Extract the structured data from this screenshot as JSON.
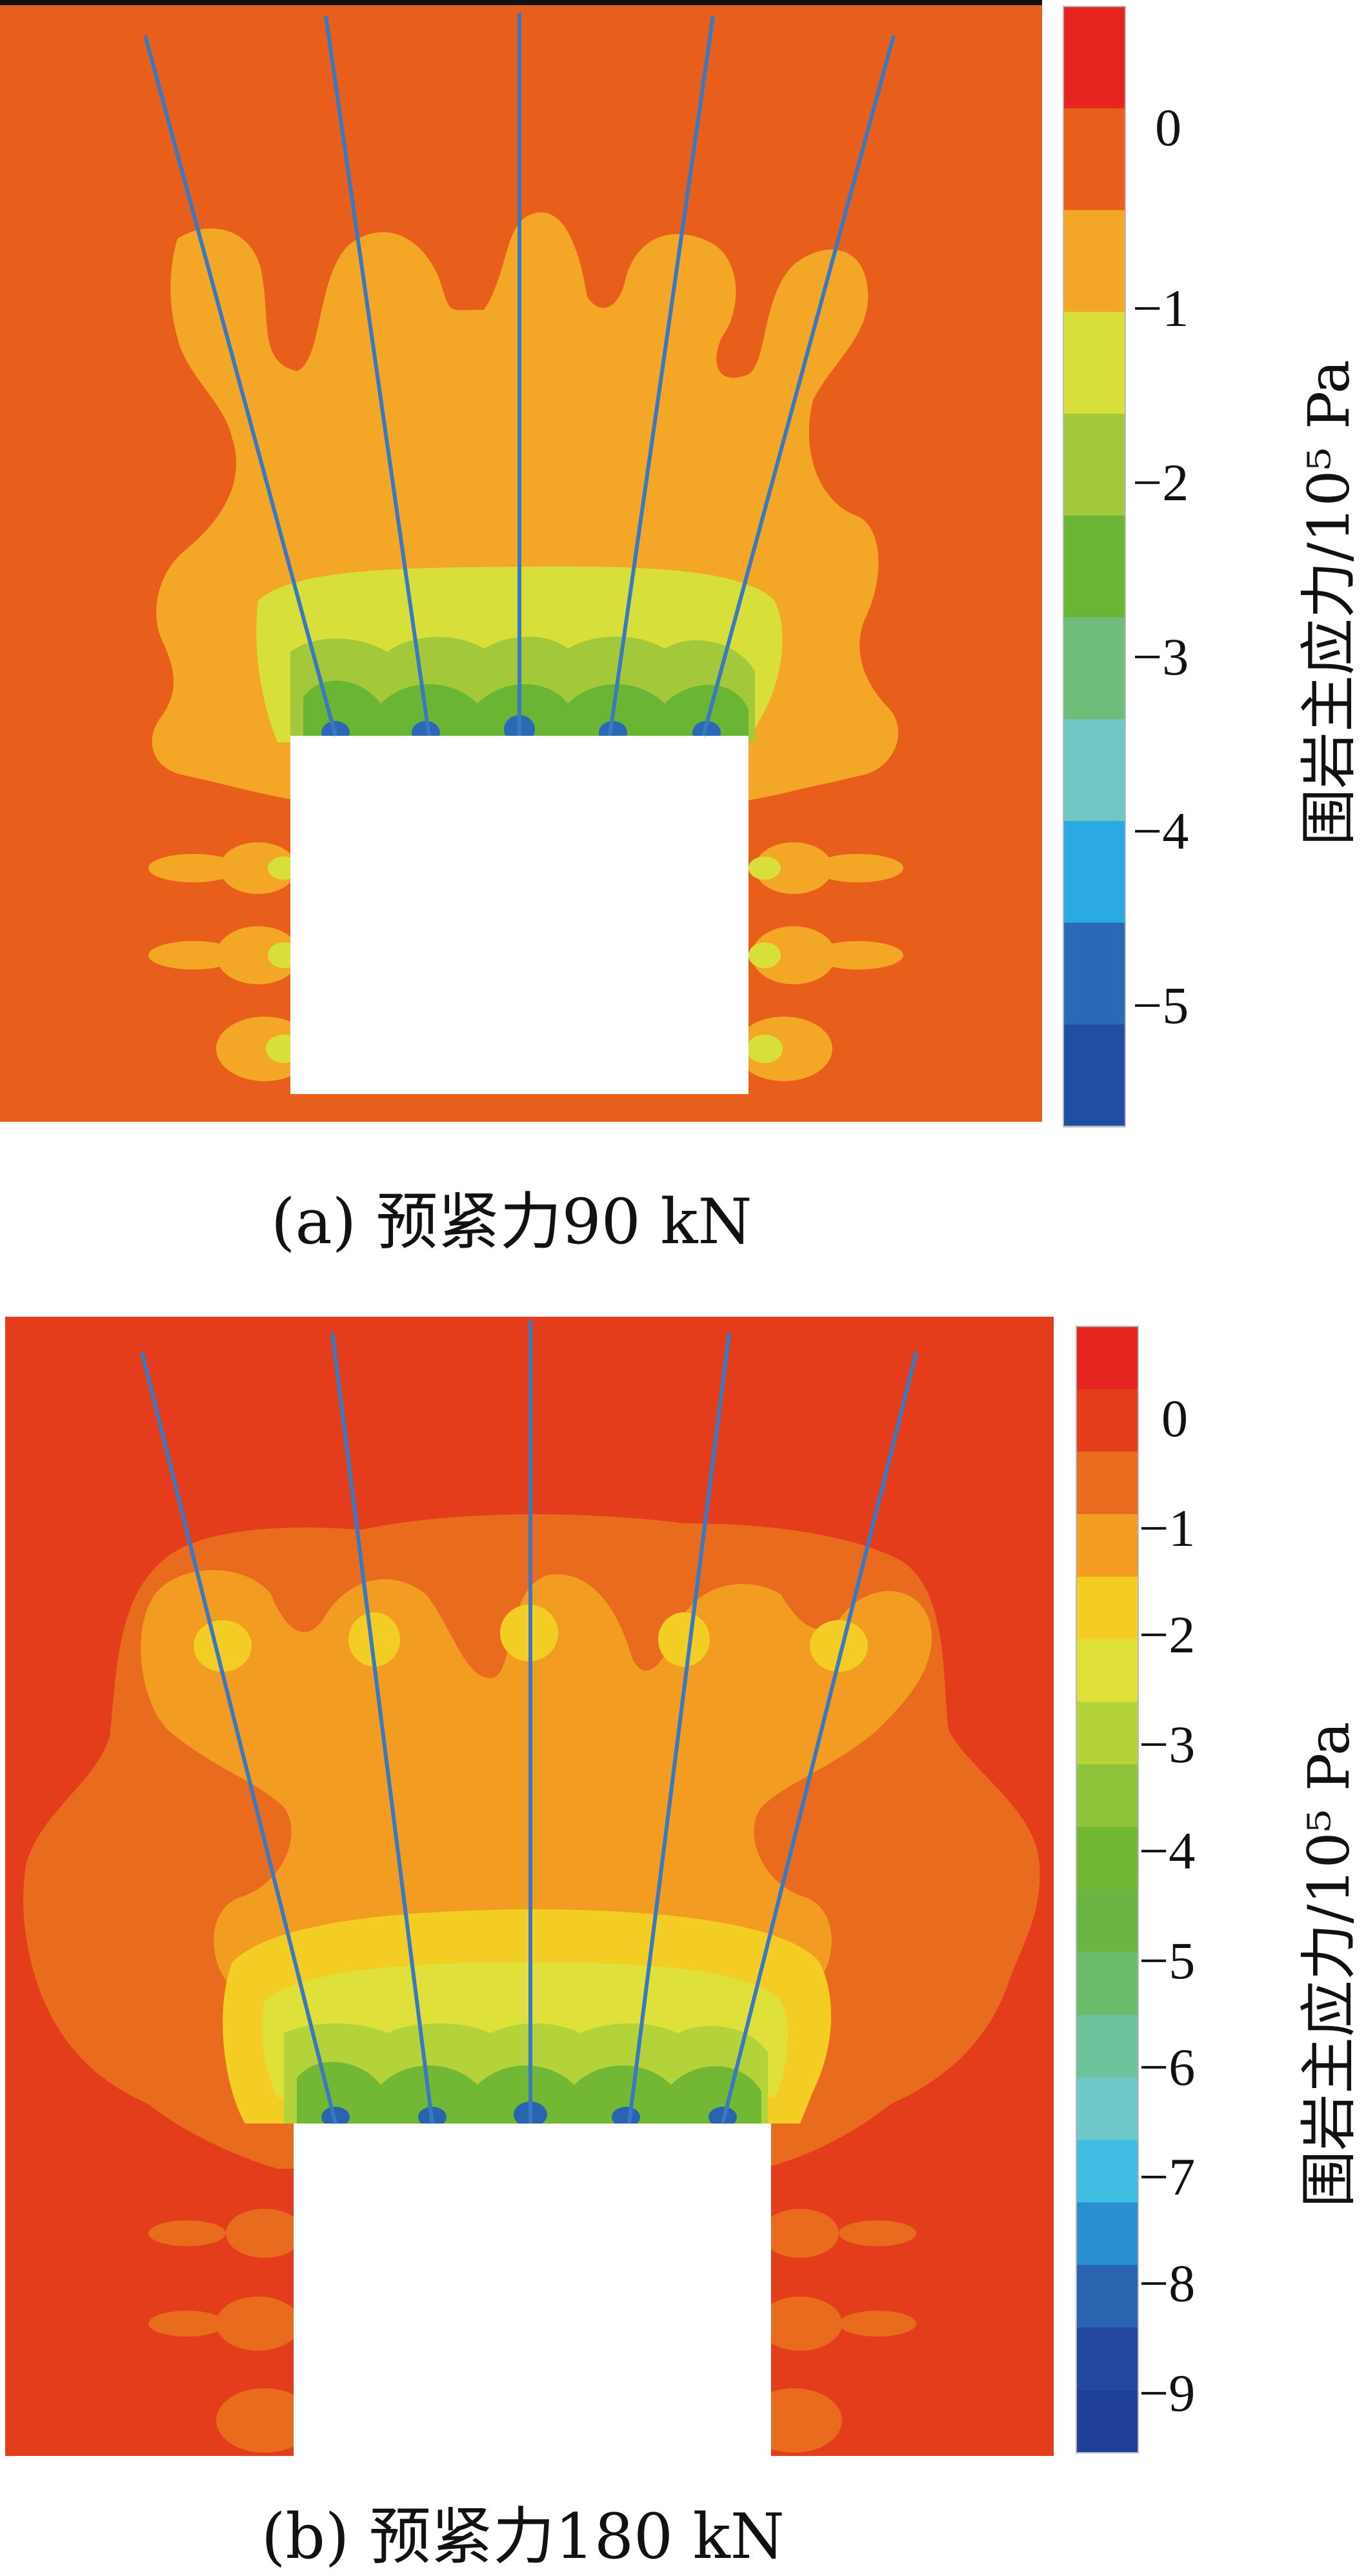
{
  "figures": [
    {
      "caption": "(a)  预紧力90 kN",
      "colorbar": {
        "title": "围岩主应力/10⁵ Pa",
        "ticks": [
          "0",
          "−1",
          "−2",
          "−3",
          "−4",
          "−5"
        ],
        "colors": [
          "#e62420",
          "#e85f1c",
          "#f4a726",
          "#d9df3a",
          "#a3c93a",
          "#6ab534",
          "#6dbc78",
          "#70c6c3",
          "#2aa9e2",
          "#2a69b5",
          "#1f4ea3"
        ]
      },
      "background_color": "#e85f1c",
      "zone_colors": [
        "#f4a726",
        "#d9df3a",
        "#a3c93a",
        "#6ab534",
        "#2a69b5"
      ]
    },
    {
      "caption": "(b)  预紧力180 kN",
      "colorbar": {
        "title": "围岩主应力/10⁵ Pa",
        "ticks": [
          "0",
          "−1",
          "−2",
          "−3",
          "−4",
          "−5",
          "−6",
          "−7",
          "−8",
          "−9"
        ],
        "colors": [
          "#e62420",
          "#e43d1c",
          "#e96b1d",
          "#f39c22",
          "#f4cd24",
          "#dfe03a",
          "#b4d23a",
          "#8fc43a",
          "#73b834",
          "#6bb544",
          "#6abc6a",
          "#6cc29a",
          "#6ec8c8",
          "#3fbde3",
          "#2a8fcf",
          "#2a64b0",
          "#24489f",
          "#1f3f98"
        ]
      },
      "background_color": "#e43d1c",
      "zone_colors": [
        "#e96b1d",
        "#f39c22",
        "#f4cd24",
        "#dfe03a",
        "#b4d23a",
        "#73b834",
        "#2a64b0"
      ]
    }
  ]
}
